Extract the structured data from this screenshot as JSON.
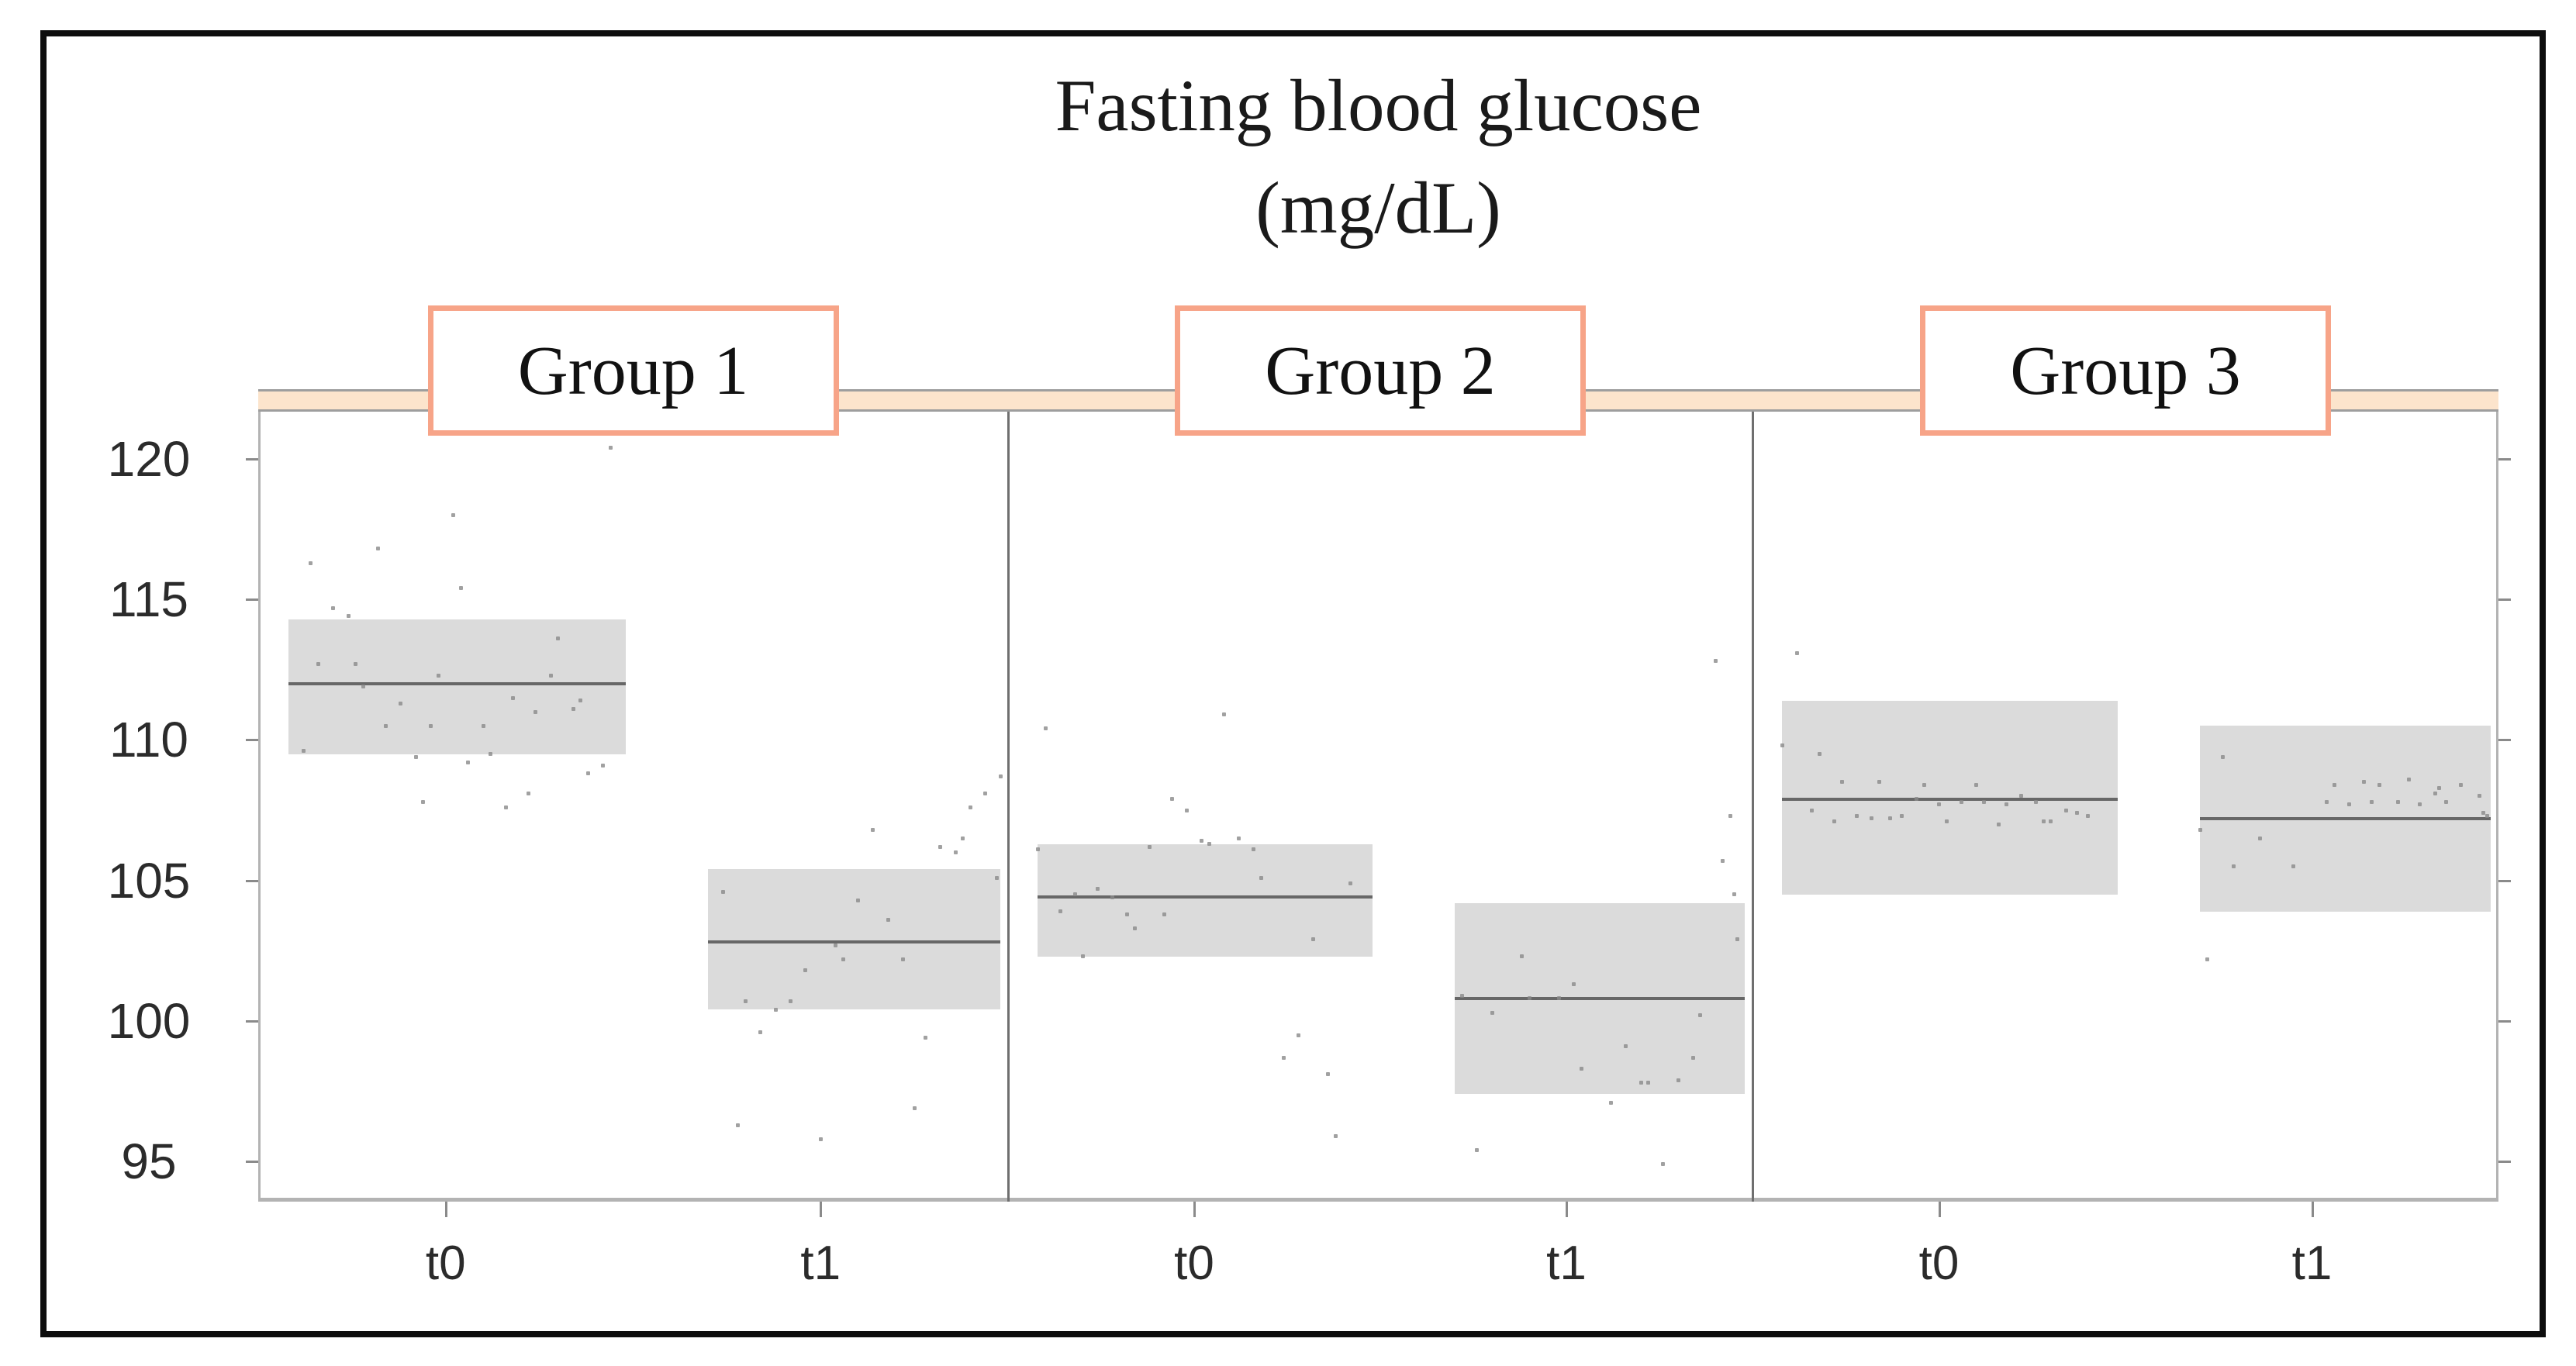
{
  "figure": {
    "kind": "faceted statistical plot (crossbar mean bands with jittered points)"
  },
  "colors": {
    "strip_fill": "#fce4cc",
    "strip_border": "#9e9e9e",
    "facet_label_border": "#f7a488",
    "panel_border": "#b3b3b3",
    "separator": "#6f6f6f",
    "box_fill": "#dbdbdb",
    "mean_line": "#676767",
    "point": "#8a8a8a",
    "tick": "#8a8a8a",
    "text": "#1a1a1a",
    "frame": "#0d0d0d"
  },
  "chart_data": {
    "type": "crossbar_jitter_faceted",
    "title": "Fasting blood glucose",
    "title_line2": "(mg/dL)",
    "facets": [
      "Group 1",
      "Group 2",
      "Group 3"
    ],
    "x_categories": [
      "t0",
      "t1"
    ],
    "xlabel": "",
    "ylabel": "",
    "y_ticks": [
      120,
      115,
      110,
      105,
      100,
      95
    ],
    "ylim": [
      93.5,
      121.7
    ],
    "grid": false,
    "legend": "none",
    "series": [
      {
        "facet": 0,
        "category": "t0",
        "mean": 112.0,
        "lo": 109.5,
        "hi": 114.3,
        "points": [
          [
            0.47,
            120.4
          ],
          [
            0.26,
            118.0
          ],
          [
            0.16,
            116.8
          ],
          [
            0.07,
            116.3
          ],
          [
            0.27,
            115.4
          ],
          [
            0.1,
            114.7
          ],
          [
            0.12,
            114.4
          ],
          [
            0.4,
            113.6
          ],
          [
            0.08,
            112.7
          ],
          [
            0.13,
            112.7
          ],
          [
            0.24,
            112.3
          ],
          [
            0.39,
            112.3
          ],
          [
            0.14,
            111.9
          ],
          [
            0.34,
            111.5
          ],
          [
            0.43,
            111.4
          ],
          [
            0.37,
            111.0
          ],
          [
            0.42,
            111.1
          ],
          [
            0.19,
            111.3
          ],
          [
            0.17,
            110.5
          ],
          [
            0.23,
            110.5
          ],
          [
            0.3,
            110.5
          ],
          [
            0.06,
            109.6
          ],
          [
            0.21,
            109.4
          ],
          [
            0.28,
            109.2
          ],
          [
            0.31,
            109.5
          ],
          [
            0.46,
            109.1
          ],
          [
            0.44,
            108.8
          ],
          [
            0.36,
            108.1
          ],
          [
            0.22,
            107.8
          ],
          [
            0.33,
            107.6
          ]
        ]
      },
      {
        "facet": 0,
        "category": "t1",
        "mean": 102.8,
        "lo": 100.4,
        "hi": 105.4,
        "points": [
          [
            0.99,
            108.7
          ],
          [
            0.97,
            108.1
          ],
          [
            0.95,
            107.6
          ],
          [
            0.82,
            106.8
          ],
          [
            0.94,
            106.5
          ],
          [
            0.91,
            106.2
          ],
          [
            0.93,
            106.0
          ],
          [
            0.985,
            105.1
          ],
          [
            0.62,
            104.6
          ],
          [
            0.8,
            104.3
          ],
          [
            0.84,
            103.6
          ],
          [
            0.77,
            102.7
          ],
          [
            0.78,
            102.2
          ],
          [
            0.86,
            102.2
          ],
          [
            0.73,
            101.8
          ],
          [
            0.65,
            100.7
          ],
          [
            0.71,
            100.7
          ],
          [
            0.69,
            100.4
          ],
          [
            0.67,
            99.6
          ],
          [
            0.89,
            99.4
          ],
          [
            0.875,
            96.9
          ],
          [
            0.64,
            96.3
          ],
          [
            0.75,
            95.8
          ]
        ]
      },
      {
        "facet": 1,
        "category": "t0",
        "mean": 104.4,
        "lo": 102.3,
        "hi": 106.3,
        "points": [
          [
            0.05,
            110.4
          ],
          [
            0.29,
            110.9
          ],
          [
            0.22,
            107.9
          ],
          [
            0.24,
            107.5
          ],
          [
            0.26,
            106.4
          ],
          [
            0.27,
            106.3
          ],
          [
            0.31,
            106.5
          ],
          [
            0.33,
            106.1
          ],
          [
            0.19,
            106.2
          ],
          [
            0.04,
            106.1
          ],
          [
            0.34,
            105.1
          ],
          [
            0.46,
            104.9
          ],
          [
            0.09,
            104.5
          ],
          [
            0.12,
            104.7
          ],
          [
            0.14,
            104.4
          ],
          [
            0.07,
            103.9
          ],
          [
            0.16,
            103.8
          ],
          [
            0.21,
            103.8
          ],
          [
            0.17,
            103.3
          ],
          [
            0.41,
            102.9
          ],
          [
            0.1,
            102.3
          ],
          [
            0.39,
            99.5
          ],
          [
            0.37,
            98.7
          ],
          [
            0.43,
            98.1
          ],
          [
            0.44,
            95.9
          ]
        ]
      },
      {
        "facet": 1,
        "category": "t1",
        "mean": 100.8,
        "lo": 97.4,
        "hi": 104.2,
        "points": [
          [
            0.95,
            112.8
          ],
          [
            0.97,
            107.3
          ],
          [
            0.96,
            105.7
          ],
          [
            0.975,
            104.5
          ],
          [
            0.98,
            102.9
          ],
          [
            0.69,
            102.3
          ],
          [
            0.76,
            101.3
          ],
          [
            0.61,
            100.9
          ],
          [
            0.7,
            100.8
          ],
          [
            0.74,
            100.8
          ],
          [
            0.93,
            100.2
          ],
          [
            0.65,
            100.3
          ],
          [
            0.83,
            99.1
          ],
          [
            0.92,
            98.7
          ],
          [
            0.77,
            98.3
          ],
          [
            0.85,
            97.8
          ],
          [
            0.86,
            97.8
          ],
          [
            0.9,
            97.9
          ],
          [
            0.81,
            97.1
          ],
          [
            0.63,
            95.4
          ],
          [
            0.88,
            94.9
          ]
        ]
      },
      {
        "facet": 2,
        "category": "t0",
        "mean": 107.9,
        "lo": 104.5,
        "hi": 111.4,
        "points": [
          [
            0.06,
            113.1
          ],
          [
            0.04,
            109.8
          ],
          [
            0.09,
            109.5
          ],
          [
            0.12,
            108.5
          ],
          [
            0.17,
            108.5
          ],
          [
            0.23,
            108.4
          ],
          [
            0.3,
            108.4
          ],
          [
            0.22,
            107.9
          ],
          [
            0.25,
            107.7
          ],
          [
            0.28,
            107.8
          ],
          [
            0.31,
            107.8
          ],
          [
            0.34,
            107.7
          ],
          [
            0.36,
            108.0
          ],
          [
            0.38,
            107.8
          ],
          [
            0.08,
            107.5
          ],
          [
            0.11,
            107.1
          ],
          [
            0.14,
            107.3
          ],
          [
            0.16,
            107.2
          ],
          [
            0.185,
            107.2
          ],
          [
            0.2,
            107.3
          ],
          [
            0.26,
            107.1
          ],
          [
            0.33,
            107.0
          ],
          [
            0.39,
            107.1
          ],
          [
            0.4,
            107.1
          ],
          [
            0.435,
            107.4
          ],
          [
            0.45,
            107.3
          ],
          [
            0.42,
            107.5
          ]
        ]
      },
      {
        "facet": 2,
        "category": "t1",
        "mean": 107.2,
        "lo": 103.9,
        "hi": 110.5,
        "points": [
          [
            0.63,
            109.4
          ],
          [
            0.78,
            108.4
          ],
          [
            0.82,
            108.5
          ],
          [
            0.84,
            108.4
          ],
          [
            0.88,
            108.6
          ],
          [
            0.915,
            108.1
          ],
          [
            0.92,
            108.3
          ],
          [
            0.95,
            108.4
          ],
          [
            0.975,
            108.0
          ],
          [
            0.77,
            107.8
          ],
          [
            0.8,
            107.7
          ],
          [
            0.83,
            107.8
          ],
          [
            0.865,
            107.8
          ],
          [
            0.895,
            107.7
          ],
          [
            0.93,
            107.8
          ],
          [
            0.98,
            107.4
          ],
          [
            0.985,
            107.3
          ],
          [
            0.6,
            106.8
          ],
          [
            0.68,
            106.5
          ],
          [
            0.645,
            105.5
          ],
          [
            0.725,
            105.5
          ],
          [
            0.61,
            102.2
          ]
        ]
      }
    ]
  }
}
